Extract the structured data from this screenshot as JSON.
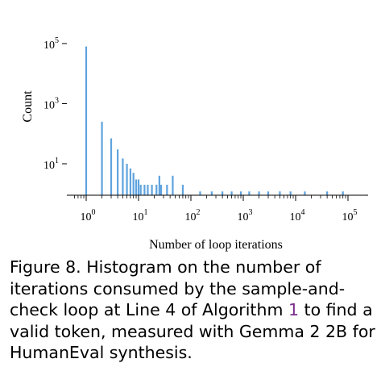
{
  "chart_data": {
    "type": "bar",
    "xscale": "log",
    "yscale": "log",
    "xlabel": "Number of loop iterations",
    "ylabel": "Count",
    "xlim": [
      0.5,
      150000
    ],
    "ylim": [
      1,
      300000
    ],
    "x_ticks": [
      {
        "base": "10",
        "exp": "0"
      },
      {
        "base": "10",
        "exp": "1"
      },
      {
        "base": "10",
        "exp": "2"
      },
      {
        "base": "10",
        "exp": "3"
      },
      {
        "base": "10",
        "exp": "4"
      },
      {
        "base": "10",
        "exp": "5"
      }
    ],
    "y_ticks": [
      {
        "base": "10",
        "exp": "1"
      },
      {
        "base": "10",
        "exp": "3"
      },
      {
        "base": "10",
        "exp": "5"
      }
    ],
    "bar_color": "#5fa3de",
    "bars": [
      {
        "x": 1,
        "count": 80000
      },
      {
        "x": 2,
        "count": 250
      },
      {
        "x": 3,
        "count": 70
      },
      {
        "x": 4,
        "count": 30
      },
      {
        "x": 5,
        "count": 15
      },
      {
        "x": 6,
        "count": 10
      },
      {
        "x": 7,
        "count": 7
      },
      {
        "x": 8,
        "count": 5
      },
      {
        "x": 9,
        "count": 3
      },
      {
        "x": 10,
        "count": 3
      },
      {
        "x": 11,
        "count": 2
      },
      {
        "x": 13,
        "count": 2
      },
      {
        "x": 15,
        "count": 2
      },
      {
        "x": 18,
        "count": 2
      },
      {
        "x": 22,
        "count": 2
      },
      {
        "x": 25,
        "count": 4
      },
      {
        "x": 27,
        "count": 2
      },
      {
        "x": 35,
        "count": 2
      },
      {
        "x": 45,
        "count": 4
      },
      {
        "x": 70,
        "count": 2
      },
      {
        "x": 150,
        "count": 1.2
      },
      {
        "x": 250,
        "count": 1.2
      },
      {
        "x": 400,
        "count": 1.2
      },
      {
        "x": 600,
        "count": 1.2
      },
      {
        "x": 900,
        "count": 1.2
      },
      {
        "x": 1300,
        "count": 1.2
      },
      {
        "x": 2000,
        "count": 1.2
      },
      {
        "x": 3000,
        "count": 1.2
      },
      {
        "x": 5000,
        "count": 1.2
      },
      {
        "x": 8000,
        "count": 1.2
      },
      {
        "x": 15000,
        "count": 1.2
      },
      {
        "x": 40000,
        "count": 1.2
      },
      {
        "x": 80000,
        "count": 1.2
      }
    ]
  },
  "caption": {
    "label": "Figure 8.",
    "text_before_ref": "Histogram on the number of iterations consumed by the sample-and-check loop at Line 4 of Algorithm",
    "ref": "1",
    "text_after_ref": "to find a valid token, measured with Gemma 2 2B for HumanEval synthesis."
  }
}
